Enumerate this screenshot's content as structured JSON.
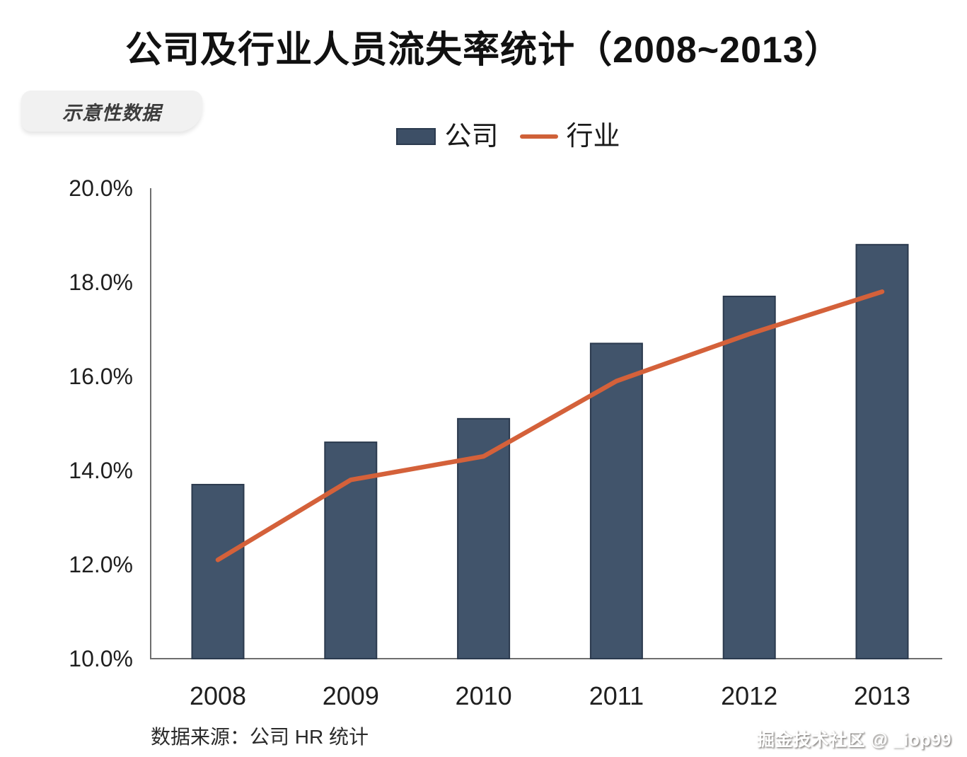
{
  "page": {
    "title": "公司及行业人员流失率统计（2008~2013）",
    "badge": "示意性数据",
    "source": "数据来源：公司 HR 统计",
    "watermark": "掘金技术社区 @ _iop99"
  },
  "legend": {
    "company_label": "公司",
    "industry_label": "行业"
  },
  "colors": {
    "bar_fill": "#41546b",
    "bar_border": "#2b3a4e",
    "line": "#d4613a",
    "axis": "#6e6e6e",
    "tick_text": "#1f1f1f"
  },
  "chart_data": {
    "type": "combo",
    "title": "公司及行业人员流失率统计（2008~2013）",
    "xlabel": "",
    "ylabel": "",
    "unit": "%",
    "categories": [
      "2008",
      "2009",
      "2010",
      "2011",
      "2012",
      "2013"
    ],
    "series": [
      {
        "name": "公司",
        "type": "bar",
        "color": "#41546b",
        "values": [
          13.7,
          14.6,
          15.1,
          16.7,
          17.7,
          18.8
        ]
      },
      {
        "name": "行业",
        "type": "line",
        "color": "#d4613a",
        "values": [
          12.1,
          13.8,
          14.3,
          15.9,
          16.9,
          17.8
        ]
      }
    ],
    "ylim": [
      10,
      20
    ],
    "ytick_values": [
      10,
      12,
      14,
      16,
      18,
      20
    ],
    "ytick_labels": [
      "10.0%",
      "12.0%",
      "14.0%",
      "16.0%",
      "18.0%",
      "20.0%"
    ],
    "grid": false,
    "legend_position": "top-center"
  }
}
